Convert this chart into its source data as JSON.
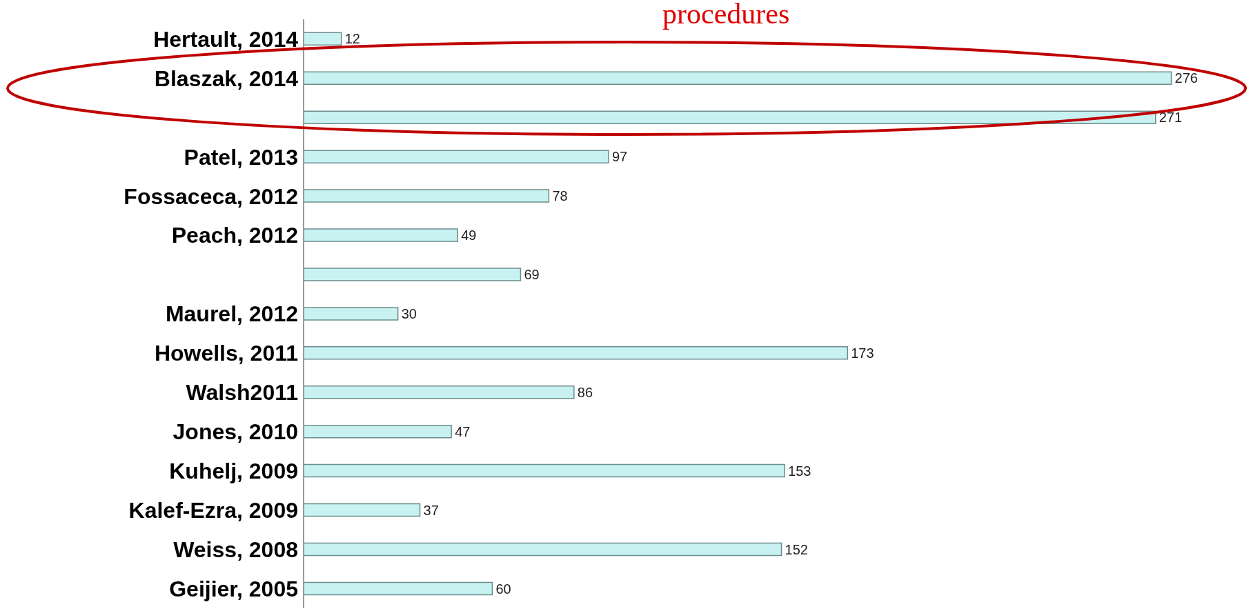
{
  "chart_data": {
    "type": "bar",
    "orientation": "horizontal",
    "annotations": [
      "procedures"
    ],
    "categories": [
      "Hertault, 2014",
      "Blaszak, 2014",
      null,
      "Patel, 2013",
      "Fossaceca, 2012",
      "Peach, 2012",
      null,
      "Maurel, 2012",
      "Howells, 2011",
      "Walsh2011",
      "Jones, 2010",
      "Kuhelj, 2009",
      "Kalef-Ezra, 2009",
      "Weiss, 2008",
      "Geijier, 2005"
    ],
    "values": [
      12,
      276,
      271,
      97,
      78,
      49,
      69,
      30,
      173,
      86,
      47,
      153,
      37,
      152,
      60
    ],
    "color": "#c8f2f2",
    "data_labels": true,
    "grid": false,
    "legend": false
  }
}
